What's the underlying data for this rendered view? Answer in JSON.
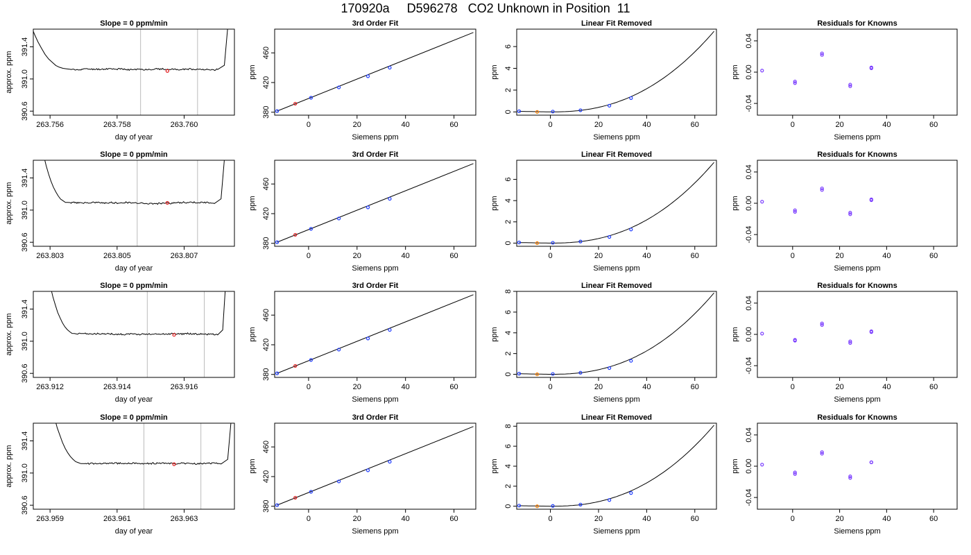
{
  "figure": {
    "title": "170920a     D596278   CO2 Unknown in Position  11"
  },
  "chart_data": [
    {
      "type": "line",
      "row": 0,
      "col": 0,
      "title": "Slope =  0  ppm/min",
      "xlabel": "day of year",
      "ylabel": "approx. ppm",
      "xlim": [
        263.7555,
        263.7615
      ],
      "ylim": [
        390.55,
        391.62
      ],
      "xticks": [
        263.756,
        263.758,
        263.76
      ],
      "xtick_labels": [
        "263.756",
        "263.758",
        "263.760"
      ],
      "yticks": [
        390.6,
        391.0,
        391.4
      ],
      "ytick_labels": [
        "390.6",
        "391.0",
        "391.4"
      ],
      "window_start": 263.7551,
      "plateau_start": 263.7566,
      "plateau_end": 263.761,
      "window_end": 263.7614,
      "plateau_level": 391.12,
      "sample_seed": 11,
      "vlines": [
        263.7587,
        263.7604
      ],
      "marker": {
        "x": 263.7595,
        "y": 391.1,
        "color": "#e31a1c"
      }
    },
    {
      "type": "line",
      "row": 0,
      "col": 1,
      "title": "3rd Order Fit",
      "xlabel": "Siemens ppm",
      "ylabel": "ppm",
      "xlim": [
        -14,
        69
      ],
      "ylim": [
        376,
        492
      ],
      "xticks": [
        0,
        20,
        40,
        60
      ],
      "xtick_labels": [
        "0",
        "20",
        "40",
        "60"
      ],
      "yticks": [
        380,
        420,
        460
      ],
      "ytick_labels": [
        "380",
        "420",
        "460"
      ],
      "line": {
        "x": [
          -13,
          68
        ],
        "y": [
          381.5,
          487.5
        ]
      },
      "knowns": {
        "x": [
          -13,
          1,
          12.5,
          24.5,
          33.5
        ],
        "y": [
          381.5,
          399.5,
          413.5,
          428.5,
          440.0
        ]
      },
      "unknown": {
        "x": [
          -5.5
        ],
        "y": [
          391.5
        ]
      }
    },
    {
      "type": "line",
      "row": 0,
      "col": 2,
      "title": "Linear Fit Removed",
      "xlabel": "Siemens ppm",
      "ylabel": "ppm",
      "xlim": [
        -14,
        69
      ],
      "ylim": [
        -0.3,
        7.6
      ],
      "xticks": [
        0,
        20,
        40,
        60
      ],
      "xtick_labels": [
        "0",
        "20",
        "40",
        "60"
      ],
      "yticks": [
        0,
        2,
        4,
        6
      ],
      "ytick_labels": [
        "0",
        "2",
        "4",
        "6"
      ],
      "curve": {
        "x_min": -13,
        "x_max": 68,
        "end_value": 7.4
      },
      "knowns": {
        "x": [
          -13,
          1,
          12.5,
          24.5,
          33.5
        ],
        "y": [
          0.06,
          0.03,
          0.15,
          0.57,
          1.27
        ]
      },
      "unknown": {
        "x": [
          -5.5
        ],
        "y": [
          0.0
        ]
      }
    },
    {
      "type": "scatter",
      "row": 0,
      "col": 3,
      "title": "Residuals for Knowns",
      "xlabel": "Siemens ppm",
      "ylabel": "ppm",
      "xlim": [
        -15,
        70
      ],
      "ylim": [
        -0.055,
        0.055
      ],
      "xticks": [
        0,
        20,
        40,
        60
      ],
      "xtick_labels": [
        "0",
        "20",
        "40",
        "60"
      ],
      "yticks": [
        -0.04,
        0.0,
        0.04
      ],
      "ytick_labels": [
        "-0.04",
        "0.00",
        "0.04"
      ],
      "x": [
        -13,
        1,
        1,
        12.5,
        12.5,
        24.5,
        24.5,
        33.5,
        33.5
      ],
      "y": [
        0.002,
        -0.012,
        -0.014,
        0.024,
        0.022,
        -0.016,
        -0.018,
        0.006,
        0.005
      ]
    },
    {
      "type": "line",
      "row": 1,
      "col": 0,
      "title": "Slope =  0  ppm/min",
      "xlabel": "day of year",
      "ylabel": "approx. ppm",
      "xlim": [
        263.8025,
        263.8085
      ],
      "ylim": [
        390.55,
        391.62
      ],
      "xticks": [
        263.803,
        263.805,
        263.807
      ],
      "xtick_labels": [
        "263.803",
        "263.805",
        "263.807"
      ],
      "yticks": [
        390.6,
        391.0,
        391.4
      ],
      "ytick_labels": [
        "390.6",
        "391.0",
        "391.4"
      ],
      "window_start": 263.8026,
      "plateau_start": 263.8036,
      "plateau_end": 263.8079,
      "window_end": 263.8083,
      "plateau_level": 391.09,
      "sample_seed": 23,
      "vlines": [
        263.8056,
        263.8074
      ],
      "marker": {
        "x": 263.8065,
        "y": 391.09,
        "color": "#e31a1c"
      }
    },
    {
      "type": "line",
      "row": 1,
      "col": 1,
      "title": "3rd Order Fit",
      "xlabel": "Siemens ppm",
      "ylabel": "ppm",
      "xlim": [
        -14,
        69
      ],
      "ylim": [
        376,
        492
      ],
      "xticks": [
        0,
        20,
        40,
        60
      ],
      "xtick_labels": [
        "0",
        "20",
        "40",
        "60"
      ],
      "yticks": [
        380,
        420,
        460
      ],
      "ytick_labels": [
        "380",
        "420",
        "460"
      ],
      "line": {
        "x": [
          -13,
          68
        ],
        "y": [
          381.5,
          487.5
        ]
      },
      "knowns": {
        "x": [
          -13,
          1,
          12.5,
          24.5,
          33.5
        ],
        "y": [
          381.5,
          399.5,
          413.5,
          428.5,
          440.0
        ]
      },
      "unknown": {
        "x": [
          -5.5
        ],
        "y": [
          391.5
        ]
      }
    },
    {
      "type": "line",
      "row": 1,
      "col": 2,
      "title": "Linear Fit Removed",
      "xlabel": "Siemens ppm",
      "ylabel": "ppm",
      "xlim": [
        -14,
        69
      ],
      "ylim": [
        -0.3,
        7.8
      ],
      "xticks": [
        0,
        20,
        40,
        60
      ],
      "xtick_labels": [
        "0",
        "20",
        "40",
        "60"
      ],
      "yticks": [
        0,
        2,
        4,
        6
      ],
      "ytick_labels": [
        "0",
        "2",
        "4",
        "6"
      ],
      "curve": {
        "x_min": -13,
        "x_max": 68,
        "end_value": 7.6
      },
      "knowns": {
        "x": [
          -13,
          1,
          12.5,
          24.5,
          33.5
        ],
        "y": [
          0.06,
          0.03,
          0.15,
          0.58,
          1.28
        ]
      },
      "unknown": {
        "x": [
          -5.5
        ],
        "y": [
          0.0
        ]
      }
    },
    {
      "type": "scatter",
      "row": 1,
      "col": 3,
      "title": "Residuals for Knowns",
      "xlabel": "Siemens ppm",
      "ylabel": "ppm",
      "xlim": [
        -15,
        70
      ],
      "ylim": [
        -0.055,
        0.055
      ],
      "xticks": [
        0,
        20,
        40,
        60
      ],
      "xtick_labels": [
        "0",
        "20",
        "40",
        "60"
      ],
      "yticks": [
        -0.04,
        0.0,
        0.04
      ],
      "ytick_labels": [
        "-0.04",
        "0.00",
        "0.04"
      ],
      "x": [
        -13,
        1,
        1,
        12.5,
        12.5,
        24.5,
        24.5,
        33.5,
        33.5
      ],
      "y": [
        0.002,
        -0.009,
        -0.011,
        0.019,
        0.017,
        -0.012,
        -0.014,
        0.004,
        0.005
      ]
    },
    {
      "type": "line",
      "row": 2,
      "col": 0,
      "title": "Slope =  0  ppm/min",
      "xlabel": "day of year",
      "ylabel": "approx. ppm",
      "xlim": [
        263.9115,
        263.9175
      ],
      "ylim": [
        390.55,
        391.62
      ],
      "xticks": [
        263.912,
        263.914,
        263.916
      ],
      "xtick_labels": [
        "263.912",
        "263.914",
        "263.916"
      ],
      "yticks": [
        390.6,
        391.0,
        391.4
      ],
      "ytick_labels": [
        "390.6",
        "391.0",
        "391.4"
      ],
      "window_start": 263.9118,
      "plateau_start": 263.9128,
      "plateau_end": 263.917,
      "window_end": 263.9173,
      "plateau_level": 391.09,
      "sample_seed": 37,
      "vlines": [
        263.9149,
        263.9166
      ],
      "marker": {
        "x": 263.9157,
        "y": 391.08,
        "color": "#e31a1c"
      }
    },
    {
      "type": "line",
      "row": 2,
      "col": 1,
      "title": "3rd Order Fit",
      "xlabel": "Siemens ppm",
      "ylabel": "ppm",
      "xlim": [
        -14,
        69
      ],
      "ylim": [
        376,
        492
      ],
      "xticks": [
        0,
        20,
        40,
        60
      ],
      "xtick_labels": [
        "0",
        "20",
        "40",
        "60"
      ],
      "yticks": [
        380,
        420,
        460
      ],
      "ytick_labels": [
        "380",
        "420",
        "460"
      ],
      "line": {
        "x": [
          -13,
          68
        ],
        "y": [
          381.5,
          487.5
        ]
      },
      "knowns": {
        "x": [
          -13,
          1,
          12.5,
          24.5,
          33.5
        ],
        "y": [
          381.5,
          399.5,
          413.5,
          428.5,
          440.0
        ]
      },
      "unknown": {
        "x": [
          -5.5
        ],
        "y": [
          391.5
        ]
      }
    },
    {
      "type": "line",
      "row": 2,
      "col": 2,
      "title": "Linear Fit Removed",
      "xlabel": "Siemens ppm",
      "ylabel": "ppm",
      "xlim": [
        -14,
        69
      ],
      "ylim": [
        -0.3,
        8.0
      ],
      "xticks": [
        0,
        20,
        40,
        60
      ],
      "xtick_labels": [
        "0",
        "20",
        "40",
        "60"
      ],
      "yticks": [
        0,
        2,
        4,
        6,
        8
      ],
      "ytick_labels": [
        "0",
        "2",
        "4",
        "6",
        "8"
      ],
      "curve": {
        "x_min": -13,
        "x_max": 68,
        "end_value": 7.85
      },
      "knowns": {
        "x": [
          -13,
          1,
          12.5,
          24.5,
          33.5
        ],
        "y": [
          0.06,
          0.03,
          0.15,
          0.6,
          1.3
        ]
      },
      "unknown": {
        "x": [
          -5.5
        ],
        "y": [
          0.0
        ]
      }
    },
    {
      "type": "scatter",
      "row": 2,
      "col": 3,
      "title": "Residuals for Knowns",
      "xlabel": "Siemens ppm",
      "ylabel": "ppm",
      "xlim": [
        -15,
        70
      ],
      "ylim": [
        -0.055,
        0.055
      ],
      "xticks": [
        0,
        20,
        40,
        60
      ],
      "xtick_labels": [
        "0",
        "20",
        "40",
        "60"
      ],
      "yticks": [
        -0.04,
        0.0,
        0.04
      ],
      "ytick_labels": [
        "-0.04",
        "0.00",
        "0.04"
      ],
      "x": [
        -13,
        1,
        1,
        12.5,
        12.5,
        24.5,
        24.5,
        33.5,
        33.5
      ],
      "y": [
        0.001,
        -0.007,
        -0.008,
        0.014,
        0.012,
        -0.009,
        -0.011,
        0.003,
        0.004
      ]
    },
    {
      "type": "line",
      "row": 3,
      "col": 0,
      "title": "Slope =  0  ppm/min",
      "xlabel": "day of year",
      "ylabel": "approx. ppm",
      "xlim": [
        263.9585,
        263.9645
      ],
      "ylim": [
        390.55,
        391.62
      ],
      "xticks": [
        263.959,
        263.961,
        263.963
      ],
      "xtick_labels": [
        "263.959",
        "263.961",
        "263.963"
      ],
      "yticks": [
        390.6,
        391.0,
        391.4
      ],
      "ytick_labels": [
        "390.6",
        "391.0",
        "391.4"
      ],
      "window_start": 263.9589,
      "plateau_start": 263.96,
      "plateau_end": 263.9641,
      "window_end": 263.9645,
      "plateau_level": 391.12,
      "sample_seed": 53,
      "vlines": [
        263.9618,
        263.9635
      ],
      "marker": {
        "x": 263.9627,
        "y": 391.11,
        "color": "#e31a1c"
      }
    },
    {
      "type": "line",
      "row": 3,
      "col": 1,
      "title": "3rd Order Fit",
      "xlabel": "Siemens ppm",
      "ylabel": "ppm",
      "xlim": [
        -14,
        69
      ],
      "ylim": [
        376,
        492
      ],
      "xticks": [
        0,
        20,
        40,
        60
      ],
      "xtick_labels": [
        "0",
        "20",
        "40",
        "60"
      ],
      "yticks": [
        380,
        420,
        460
      ],
      "ytick_labels": [
        "380",
        "420",
        "460"
      ],
      "line": {
        "x": [
          -13,
          68
        ],
        "y": [
          381.5,
          487.5
        ]
      },
      "knowns": {
        "x": [
          -13,
          1,
          12.5,
          24.5,
          33.5
        ],
        "y": [
          381.5,
          399.5,
          413.5,
          428.5,
          440.0
        ]
      },
      "unknown": {
        "x": [
          -5.5
        ],
        "y": [
          391.5
        ]
      }
    },
    {
      "type": "line",
      "row": 3,
      "col": 2,
      "title": "Linear Fit Removed",
      "xlabel": "Siemens ppm",
      "ylabel": "ppm",
      "xlim": [
        -14,
        69
      ],
      "ylim": [
        -0.3,
        8.3
      ],
      "xticks": [
        0,
        20,
        40,
        60
      ],
      "xtick_labels": [
        "0",
        "20",
        "40",
        "60"
      ],
      "yticks": [
        0,
        2,
        4,
        6,
        8
      ],
      "ytick_labels": [
        "0",
        "2",
        "4",
        "6",
        "8"
      ],
      "curve": {
        "x_min": -13,
        "x_max": 68,
        "end_value": 8.1
      },
      "knowns": {
        "x": [
          -13,
          1,
          12.5,
          24.5,
          33.5
        ],
        "y": [
          0.06,
          0.03,
          0.16,
          0.62,
          1.32
        ]
      },
      "unknown": {
        "x": [
          -5.5
        ],
        "y": [
          0.0
        ]
      }
    },
    {
      "type": "scatter",
      "row": 3,
      "col": 3,
      "title": "Residuals for Knowns",
      "xlabel": "Siemens ppm",
      "ylabel": "ppm",
      "xlim": [
        -15,
        70
      ],
      "ylim": [
        -0.055,
        0.055
      ],
      "xticks": [
        0,
        20,
        40,
        60
      ],
      "xtick_labels": [
        "0",
        "20",
        "40",
        "60"
      ],
      "yticks": [
        -0.04,
        0.0,
        0.04
      ],
      "ytick_labels": [
        "-0.04",
        "0.00",
        "0.04"
      ],
      "x": [
        -13,
        1,
        1,
        12.5,
        12.5,
        24.5,
        24.5,
        33.5,
        33.5
      ],
      "y": [
        0.002,
        -0.008,
        -0.01,
        0.018,
        0.016,
        -0.013,
        -0.015,
        0.005,
        0.005
      ]
    }
  ],
  "colors": {
    "known_point": "#1f3cff",
    "unknown_point_fit": "#e31a1c",
    "unknown_point_removed": "#ff7f00",
    "line": "#000000",
    "vline": "#bbbbbb",
    "residual_point": "#7a3cff"
  }
}
